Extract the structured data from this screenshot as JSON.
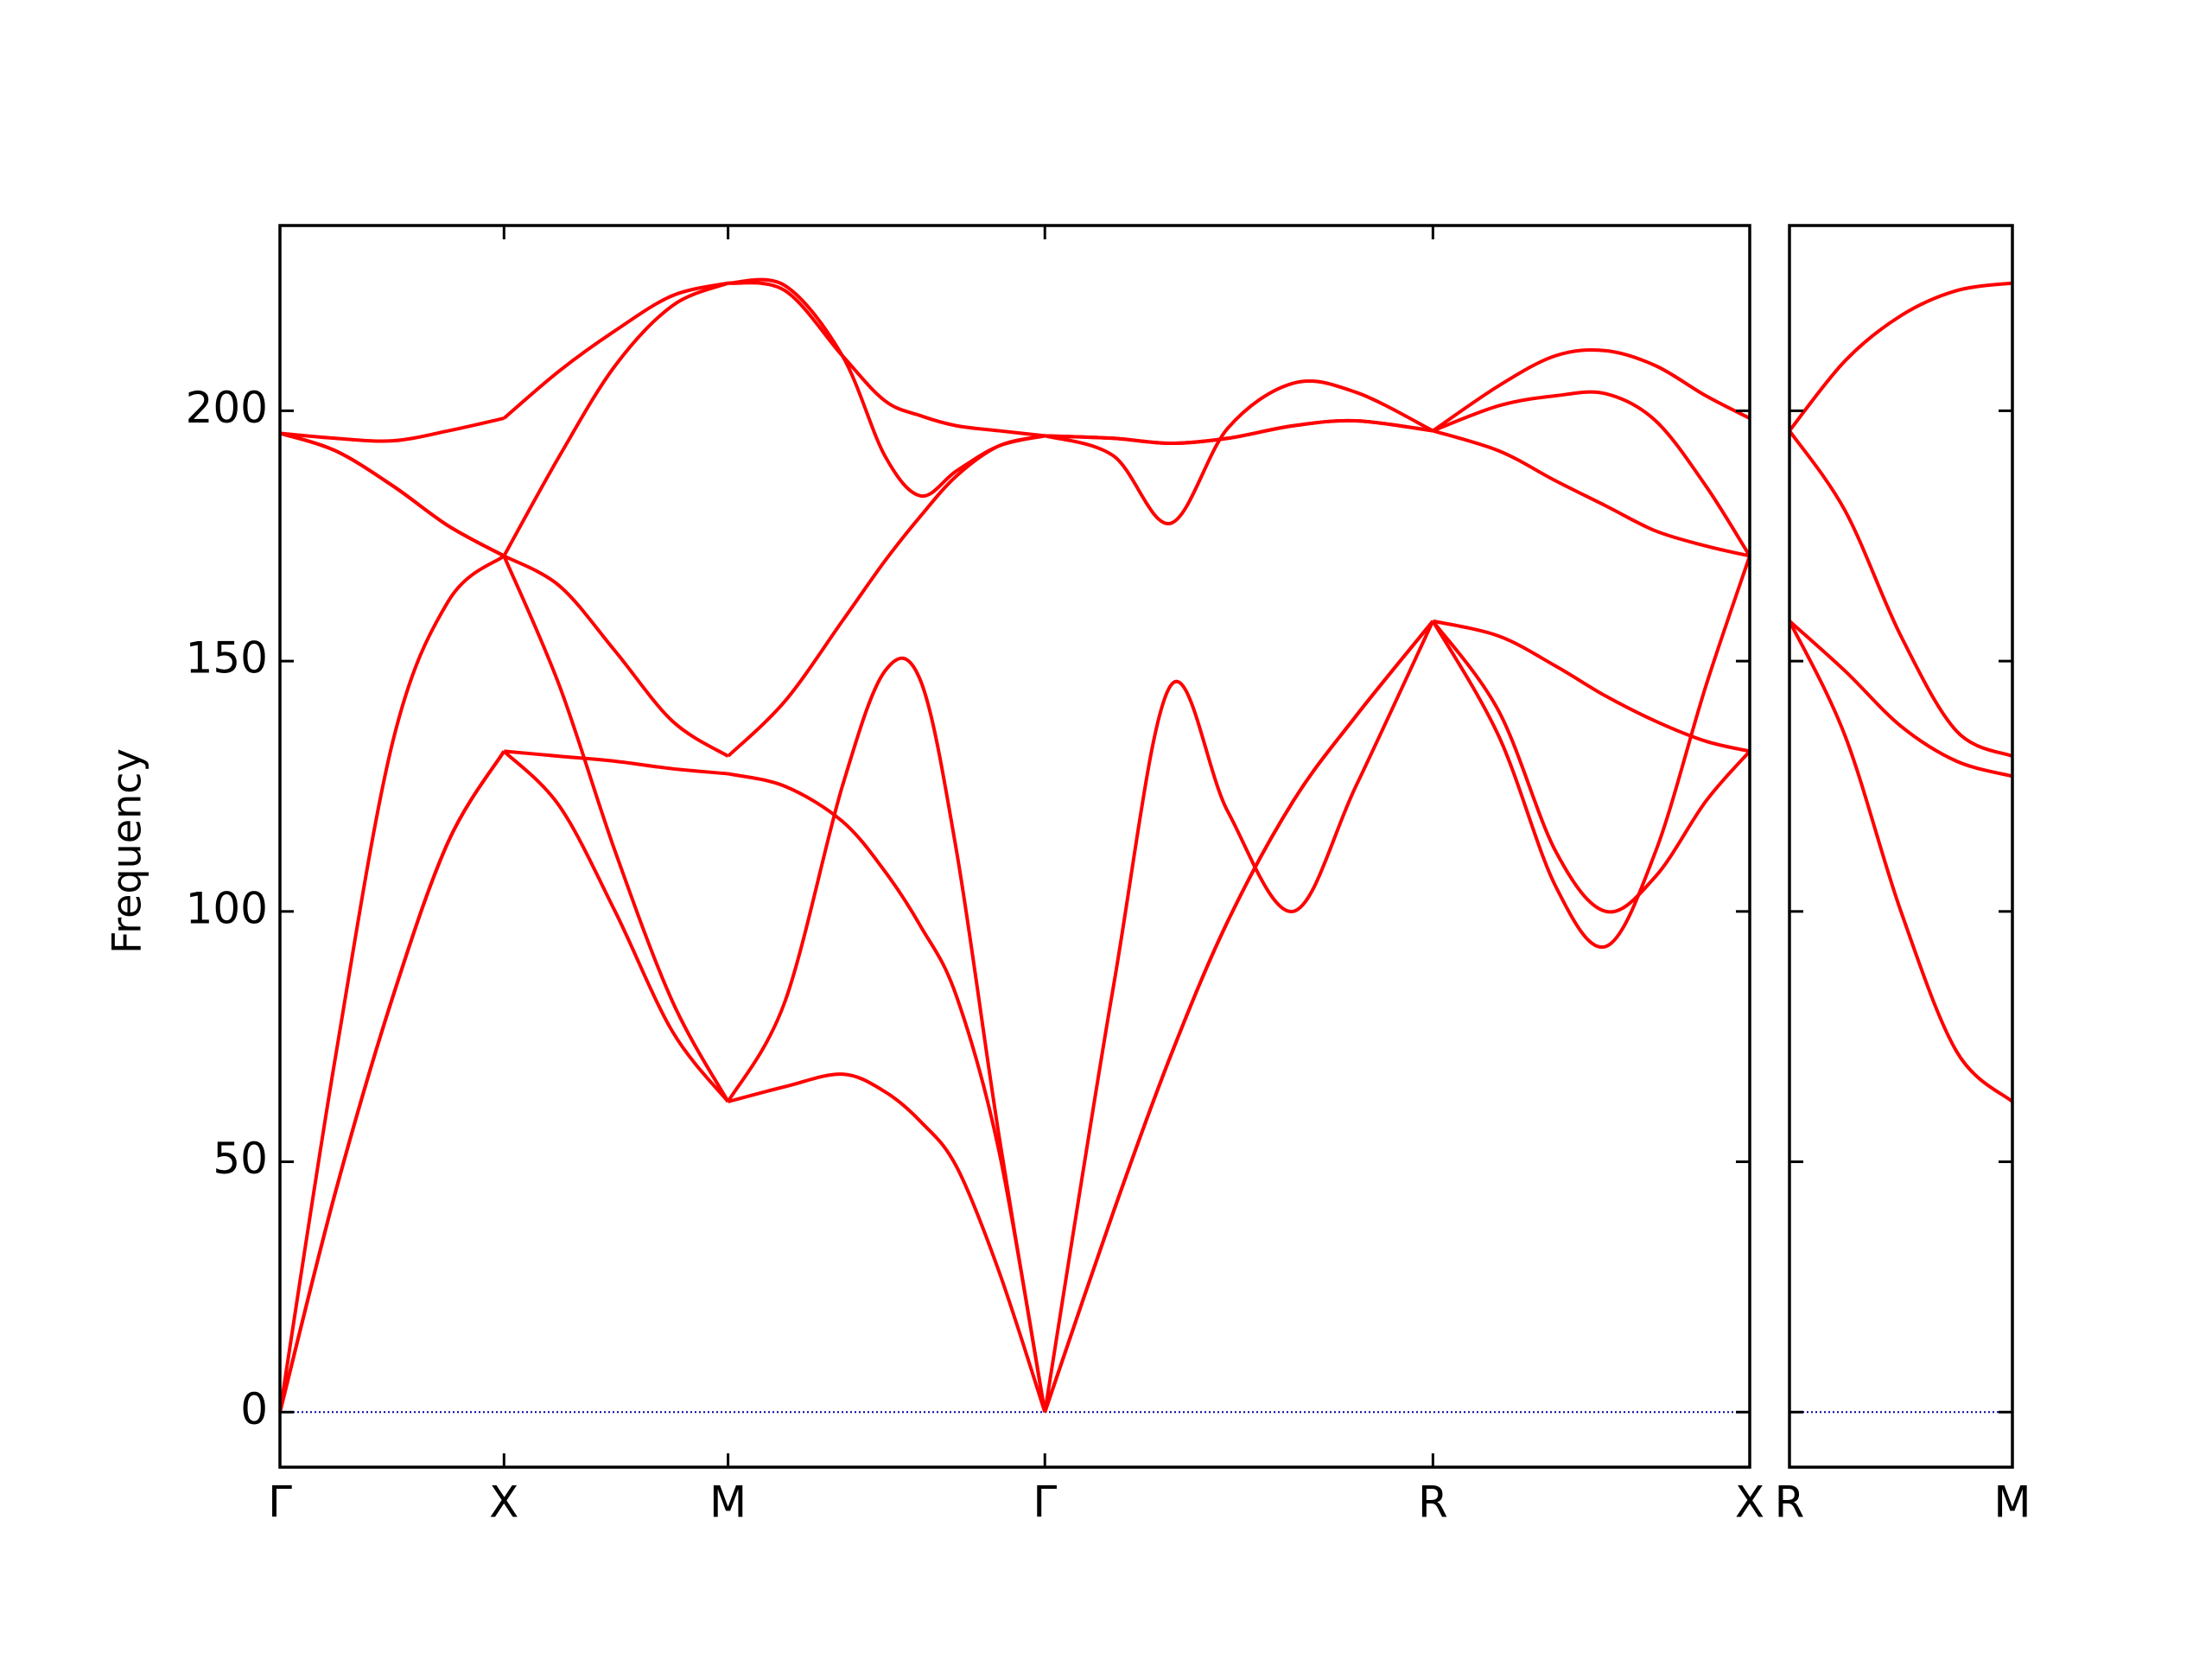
{
  "chart_data": [
    {
      "type": "line",
      "y_label": "Frequency",
      "x": [
        0,
        0.124,
        0.252,
        0.376,
        0.5,
        0.624,
        0.748,
        0.876,
        1.0,
        1.127,
        1.255,
        1.35,
        1.43,
        1.51,
        1.605,
        1.707,
        1.86,
        1.987,
        2.115,
        2.261,
        2.401,
        2.573,
        2.72,
        2.847,
        2.959,
        3.07,
        3.182,
        3.28
      ],
      "series": [
        {
          "color": "#ff0000",
          "values": [
            195.5,
            194.5,
            194,
            196,
            198.5,
            208,
            216,
            223,
            225.5,
            225,
            211,
            191,
            183,
            188,
            193,
            195,
            194.5,
            193.5,
            194.5,
            197,
            198,
            196,
            205,
            211,
            212,
            209,
            203,
            198.5
          ]
        },
        {
          "color": "#ff0000",
          "values": [
            195.5,
            192,
            185,
            177,
            171,
            191,
            209,
            221,
            225.5,
            224,
            211,
            202,
            199,
            197,
            196,
            195,
            191,
            177.5,
            196.5,
            205.5,
            203.7,
            196,
            201,
            203,
            203.4,
            198,
            185,
            171
          ]
        },
        {
          "color": "#ff0000",
          "values": [
            0,
            71,
            134,
            162,
            171,
            165,
            152,
            138,
            131,
            142,
            158,
            170,
            179,
            187,
            193,
            195,
            194.5,
            193.5,
            194.5,
            197,
            198,
            196,
            192,
            186,
            181,
            176,
            173,
            171
          ]
        },
        {
          "color": "#ff0000",
          "values": [
            0,
            44,
            83,
            114,
            132,
            131,
            130,
            128.5,
            127.5,
            125,
            118,
            108,
            97,
            83,
            52,
            0,
            40,
            71,
            98,
            122,
            139,
            158,
            155,
            149,
            143,
            138,
            134,
            132
          ]
        },
        {
          "color": "#ff0000",
          "values": [
            0,
            44,
            83,
            114,
            132,
            121,
            100,
            76,
            62,
            65,
            67.5,
            64,
            58,
            49,
            28,
            0,
            40,
            71,
            98,
            122,
            139,
            158,
            140,
            112,
            100,
            107,
            122,
            132
          ]
        },
        {
          "color": "#ff0000",
          "values": [
            195.5,
            192,
            185,
            177,
            171,
            145,
            112,
            82,
            62,
            82,
            125,
            148,
            146,
            112,
            55,
            0,
            85,
            145,
            120,
            100,
            125,
            158,
            135,
            105,
            93,
            112,
            145,
            171
          ]
        }
      ],
      "xlim": [
        0,
        3.28
      ],
      "ylim": [
        -11,
        237
      ],
      "xticks": [
        {
          "value": 0,
          "label": "Γ"
        },
        {
          "value": 0.5,
          "label": "X"
        },
        {
          "value": 1.0,
          "label": "M"
        },
        {
          "value": 1.707,
          "label": "Γ"
        },
        {
          "value": 2.573,
          "label": "R"
        },
        {
          "value": 3.28,
          "label": "X"
        }
      ],
      "yticks": [
        0,
        50,
        100,
        150,
        200
      ],
      "show_ytick_labels": true,
      "hlines": [
        0
      ],
      "hline_color": "#0000aa"
    },
    {
      "type": "line",
      "x": [
        0,
        0.125,
        0.25,
        0.375,
        0.5
      ],
      "series": [
        {
          "color": "#ff0000",
          "values": [
            196,
            210,
            219,
            224,
            225.5
          ]
        },
        {
          "color": "#ff0000",
          "values": [
            196,
            180,
            155,
            136,
            131
          ]
        },
        {
          "color": "#ff0000",
          "values": [
            158,
            148,
            137,
            130,
            127
          ]
        },
        {
          "color": "#ff0000",
          "values": [
            158,
            135,
            100,
            72,
            62
          ]
        }
      ],
      "xlim": [
        0,
        0.5
      ],
      "ylim": [
        -11,
        237
      ],
      "xticks": [
        {
          "value": 0,
          "label": "R"
        },
        {
          "value": 0.5,
          "label": "M"
        }
      ],
      "yticks": [
        0,
        50,
        100,
        150,
        200
      ],
      "show_ytick_labels": false,
      "hlines": [
        0
      ],
      "hline_color": "#0000aa"
    }
  ]
}
